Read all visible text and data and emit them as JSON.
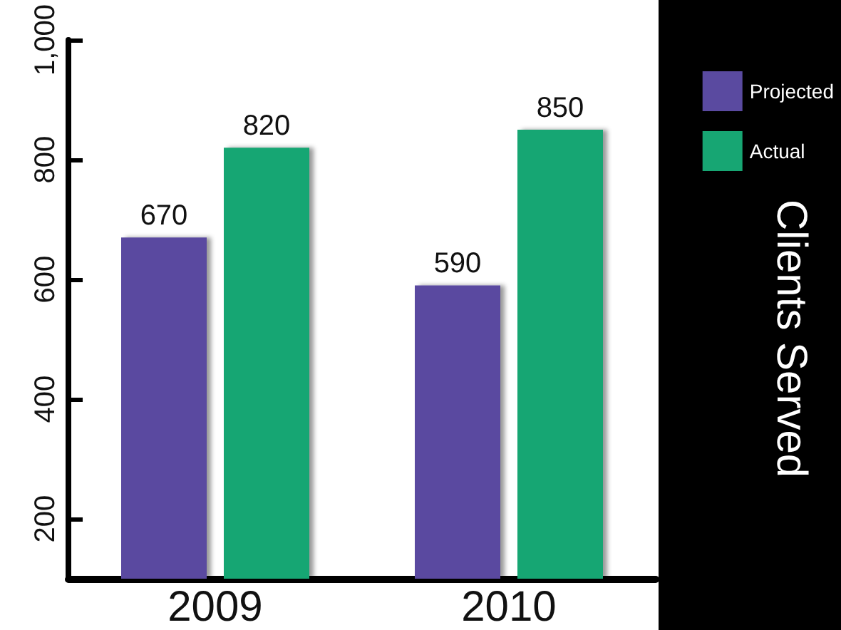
{
  "chart_data": {
    "type": "bar",
    "title": "Clients Served",
    "categories": [
      "2009",
      "2010"
    ],
    "series": [
      {
        "name": "Projected",
        "color": "#5a4aa0",
        "values": [
          670,
          590
        ]
      },
      {
        "name": "Actual",
        "color": "#17a673",
        "values": [
          820,
          850
        ]
      }
    ],
    "ylim": [
      100,
      1000
    ],
    "yticks": [
      {
        "value": 200,
        "label": "200"
      },
      {
        "value": 400,
        "label": "400"
      },
      {
        "value": 600,
        "label": "600"
      },
      {
        "value": 800,
        "label": "800"
      },
      {
        "value": 1000,
        "label": "1,000"
      }
    ],
    "data_labels": true,
    "legend": "top right",
    "grid": false
  }
}
